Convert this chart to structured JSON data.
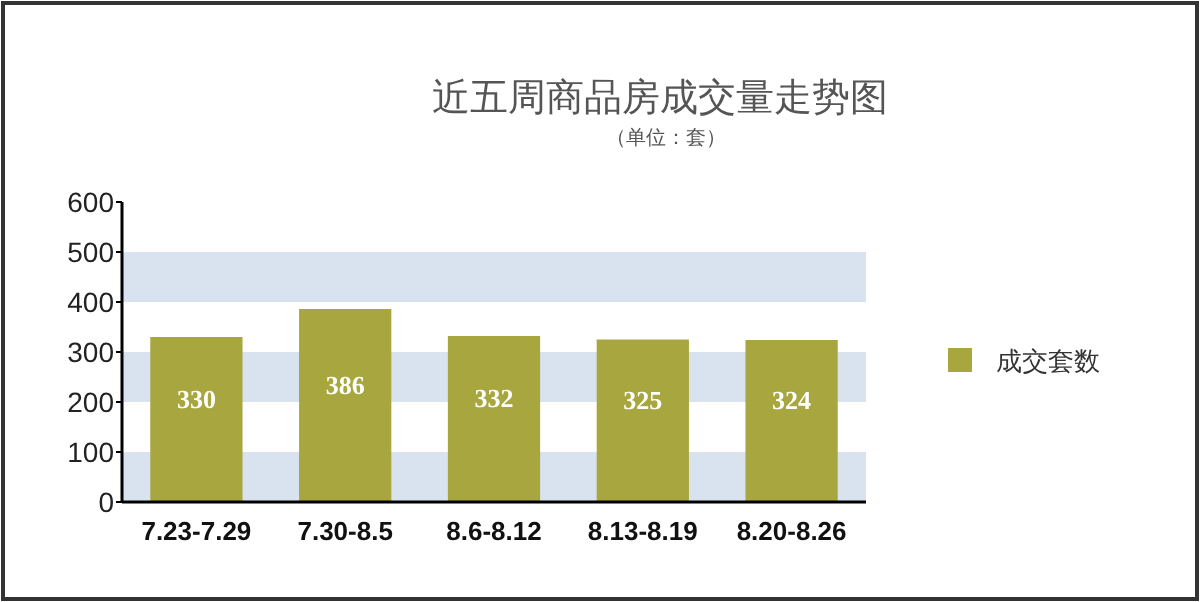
{
  "chart_data": {
    "type": "bar",
    "title": "近五周商品房成交量走势图",
    "subtitle": "（单位：套）",
    "categories": [
      "7.23-7.29",
      "7.30-8.5",
      "8.6-8.12",
      "8.13-8.19",
      "8.20-8.26"
    ],
    "series": [
      {
        "name": "成交套数",
        "color": "#a8a63e",
        "values": [
          330,
          386,
          332,
          325,
          324
        ]
      }
    ],
    "ylim": [
      0,
      600
    ],
    "yticks": [
      0,
      100,
      200,
      300,
      400,
      500,
      600
    ],
    "bands": [
      {
        "axis": "y",
        "from": 0,
        "to": 100,
        "color": "#d9e3ef"
      },
      {
        "axis": "y",
        "from": 200,
        "to": 300,
        "color": "#d9e3ef"
      },
      {
        "axis": "y",
        "from": 400,
        "to": 500,
        "color": "#d9e3ef"
      }
    ],
    "data_labels": true,
    "legend": "right",
    "grid": false
  }
}
